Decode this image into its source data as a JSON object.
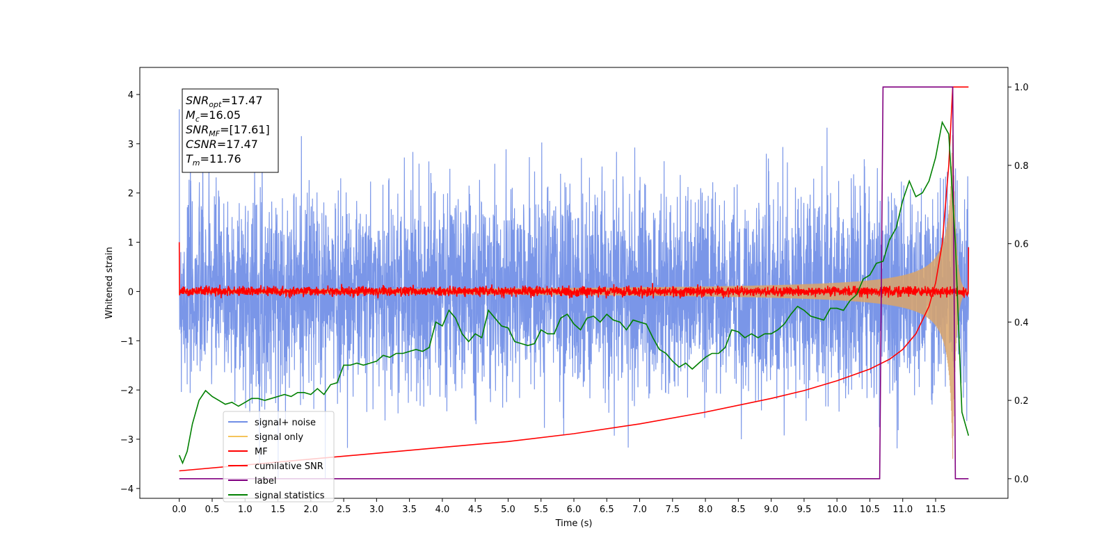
{
  "chart_data": {
    "type": "line",
    "title": "",
    "xlabel": "Time (s)",
    "ylabel": "Whitened strain",
    "y2label": "",
    "xlim": [
      -0.6,
      12.6
    ],
    "ylim": [
      -4.2,
      4.55
    ],
    "y2lim": [
      -0.05,
      1.05
    ],
    "x_ticks": [
      "0.0",
      "0.5",
      "1.0",
      "1.5",
      "2.0",
      "2.5",
      "3.0",
      "3.5",
      "4.0",
      "4.5",
      "5.0",
      "5.5",
      "6.0",
      "6.5",
      "7.0",
      "7.5",
      "8.0",
      "8.5",
      "9.0",
      "9.5",
      "10.0",
      "10.5",
      "11.0",
      "11.5"
    ],
    "y_ticks": [
      "4",
      "3",
      "2",
      "1",
      "0",
      "−1",
      "−2",
      "−3",
      "−4"
    ],
    "y2_ticks": [
      "1.0",
      "0.8",
      "0.6",
      "0.4",
      "0.2",
      "0.0"
    ],
    "grid": false,
    "legend_position": "lower-left",
    "legend": [
      {
        "label": "signal+ noise",
        "color": "#6f8de6"
      },
      {
        "label": "signal only",
        "color": "#f5c45a"
      },
      {
        "label": "MF",
        "color": "#ff0000"
      },
      {
        "label": "cumilative SNR",
        "color": "#ff0000"
      },
      {
        "label": "label",
        "color": "#800080"
      },
      {
        "label": "signal statistics",
        "color": "#008000"
      }
    ],
    "info_box": [
      {
        "sym": "SNR",
        "sub": "opt",
        "value": "=17.47"
      },
      {
        "sym": "M",
        "sub": "c",
        "value": "=16.05"
      },
      {
        "sym": "SNR",
        "sub": "MF",
        "value": "=[17.61]"
      },
      {
        "sym": "CSNR",
        "sub": "",
        "value": "=17.47"
      },
      {
        "sym": "T",
        "sub": "m",
        "value": "=11.76"
      }
    ],
    "series": [
      {
        "name": "signal+ noise",
        "axis": "left",
        "color": "#6f8de6",
        "kind": "noise",
        "x_range": [
          0.0,
          12.0
        ],
        "spread": 1.0,
        "peaks": [
          3.7,
          -3.8
        ]
      },
      {
        "name": "signal only",
        "axis": "left",
        "color": "#d9a56a",
        "kind": "chirp",
        "x_range": [
          0.0,
          12.0
        ],
        "merger_time": 11.76,
        "max_amplitude": 3.4
      },
      {
        "name": "MF",
        "axis": "left",
        "color": "#ff0000",
        "kind": "mf",
        "x_range": [
          0.0,
          12.0
        ],
        "baseline": 0.0,
        "spread": 0.05,
        "edge_values": [
          1.0,
          0.9
        ]
      },
      {
        "name": "cumilative SNR",
        "axis": "right",
        "color": "#ff0000",
        "x": [
          0.0,
          1.0,
          2.0,
          3.0,
          4.0,
          5.0,
          6.0,
          7.0,
          8.0,
          9.0,
          9.5,
          10.0,
          10.5,
          10.8,
          11.0,
          11.2,
          11.4,
          11.5,
          11.6,
          11.7,
          11.76,
          12.0
        ],
        "y": [
          0.02,
          0.035,
          0.05,
          0.065,
          0.08,
          0.095,
          0.115,
          0.14,
          0.17,
          0.205,
          0.225,
          0.25,
          0.28,
          0.305,
          0.33,
          0.37,
          0.44,
          0.5,
          0.6,
          0.8,
          1.0,
          1.0
        ]
      },
      {
        "name": "label",
        "axis": "right",
        "color": "#800080",
        "x": [
          0.0,
          10.65,
          10.7,
          11.76,
          11.8,
          12.0
        ],
        "y": [
          0.0,
          0.0,
          1.0,
          1.0,
          0.0,
          0.0
        ]
      },
      {
        "name": "signal statistics",
        "axis": "right",
        "color": "#008000",
        "x": [
          0.0,
          0.05,
          0.12,
          0.2,
          0.3,
          0.4,
          0.5,
          0.6,
          0.7,
          0.8,
          0.9,
          1.0,
          1.1,
          1.2,
          1.3,
          1.4,
          1.5,
          1.6,
          1.7,
          1.8,
          1.9,
          2.0,
          2.1,
          2.2,
          2.3,
          2.4,
          2.5,
          2.6,
          2.7,
          2.8,
          2.9,
          3.0,
          3.1,
          3.2,
          3.3,
          3.4,
          3.5,
          3.6,
          3.7,
          3.8,
          3.9,
          4.0,
          4.1,
          4.2,
          4.3,
          4.4,
          4.5,
          4.6,
          4.7,
          4.8,
          4.9,
          5.0,
          5.1,
          5.2,
          5.3,
          5.4,
          5.5,
          5.6,
          5.7,
          5.8,
          5.9,
          6.0,
          6.1,
          6.2,
          6.3,
          6.4,
          6.5,
          6.6,
          6.7,
          6.8,
          6.9,
          7.0,
          7.1,
          7.2,
          7.3,
          7.4,
          7.5,
          7.6,
          7.7,
          7.8,
          7.9,
          8.0,
          8.1,
          8.2,
          8.3,
          8.4,
          8.5,
          8.6,
          8.7,
          8.8,
          8.9,
          9.0,
          9.1,
          9.2,
          9.3,
          9.4,
          9.5,
          9.6,
          9.7,
          9.8,
          9.9,
          10.0,
          10.1,
          10.2,
          10.3,
          10.4,
          10.5,
          10.6,
          10.7,
          10.8,
          10.9,
          11.0,
          11.1,
          11.2,
          11.3,
          11.4,
          11.5,
          11.6,
          11.7,
          11.8,
          11.9,
          12.0
        ],
        "y": [
          0.06,
          0.04,
          0.07,
          0.14,
          0.2,
          0.225,
          0.21,
          0.2,
          0.19,
          0.195,
          0.185,
          0.195,
          0.205,
          0.205,
          0.2,
          0.205,
          0.21,
          0.215,
          0.21,
          0.22,
          0.22,
          0.215,
          0.23,
          0.215,
          0.24,
          0.245,
          0.29,
          0.29,
          0.295,
          0.29,
          0.295,
          0.3,
          0.315,
          0.31,
          0.32,
          0.32,
          0.325,
          0.33,
          0.325,
          0.335,
          0.4,
          0.39,
          0.43,
          0.41,
          0.37,
          0.35,
          0.37,
          0.36,
          0.43,
          0.41,
          0.39,
          0.385,
          0.35,
          0.345,
          0.34,
          0.345,
          0.38,
          0.37,
          0.37,
          0.41,
          0.42,
          0.395,
          0.38,
          0.41,
          0.415,
          0.4,
          0.42,
          0.405,
          0.4,
          0.38,
          0.405,
          0.4,
          0.395,
          0.36,
          0.33,
          0.32,
          0.3,
          0.285,
          0.295,
          0.28,
          0.295,
          0.31,
          0.32,
          0.32,
          0.335,
          0.38,
          0.375,
          0.36,
          0.37,
          0.36,
          0.37,
          0.37,
          0.38,
          0.395,
          0.42,
          0.44,
          0.43,
          0.415,
          0.41,
          0.405,
          0.435,
          0.435,
          0.43,
          0.455,
          0.47,
          0.51,
          0.52,
          0.55,
          0.555,
          0.61,
          0.64,
          0.71,
          0.76,
          0.72,
          0.73,
          0.76,
          0.82,
          0.91,
          0.88,
          0.6,
          0.17,
          0.11
        ]
      }
    ]
  }
}
